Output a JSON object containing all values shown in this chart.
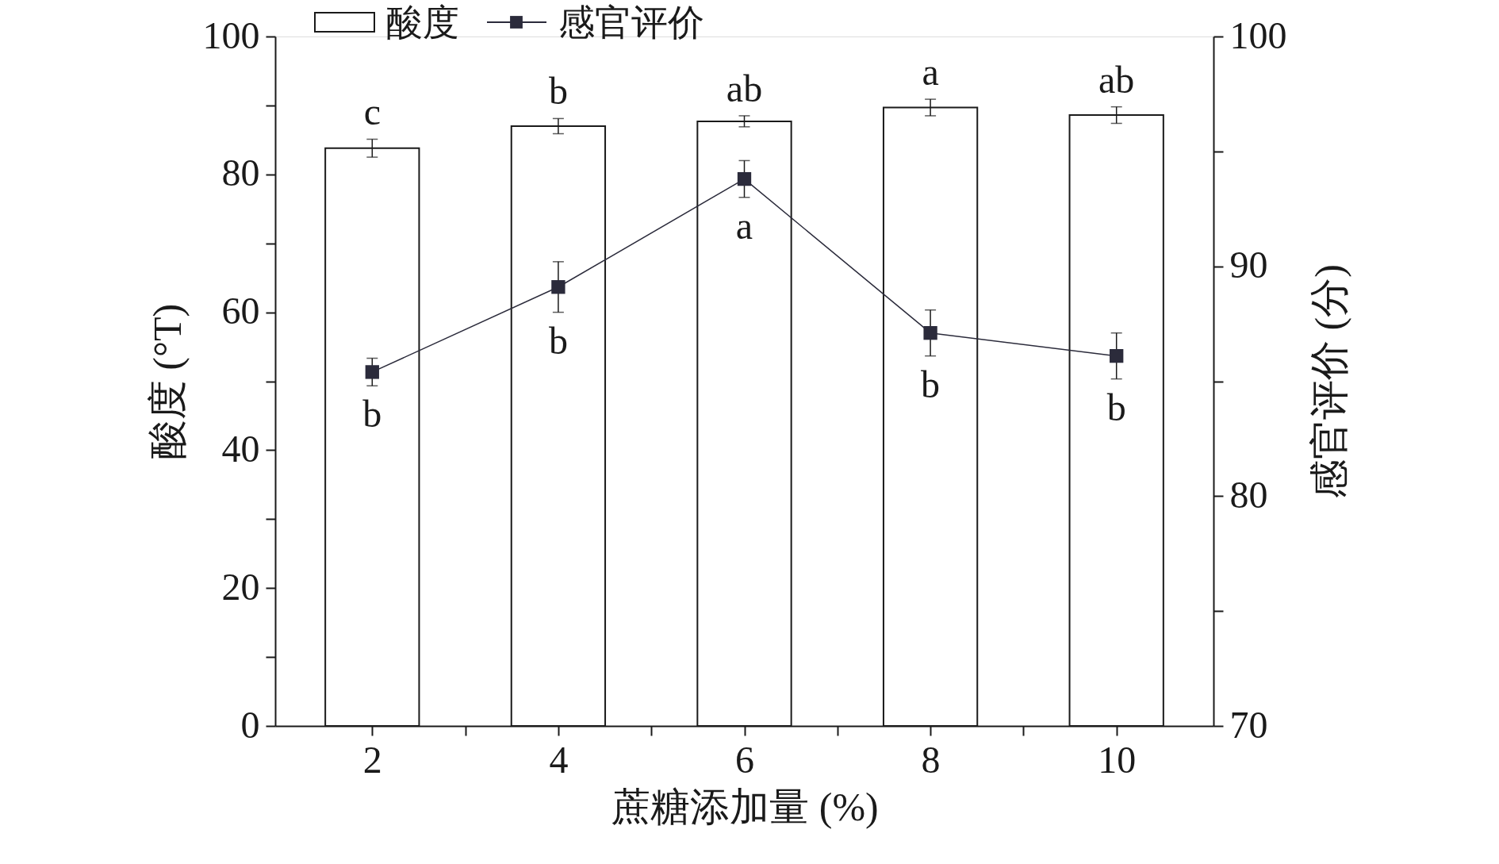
{
  "chart_data": {
    "type": "bar",
    "x": [
      2,
      4,
      6,
      8,
      10
    ],
    "xlabel": "蔗糖添加量 (%)",
    "ylabel": "酸度 (°T)",
    "y2label": "感官评价 (分)",
    "series": [
      {
        "name": "酸度",
        "color": "#ffffff",
        "values": [
          83.8,
          87.0,
          87.7,
          89.7,
          88.6
        ],
        "errors": [
          1.3,
          1.1,
          0.8,
          1.2,
          1.2
        ]
      },
      {
        "name": "感官评价",
        "type": "line",
        "axis": "y2",
        "color": "#2b2b3b",
        "values": [
          85.4,
          89.1,
          93.8,
          87.1,
          86.1
        ],
        "errors": [
          0.6,
          1.1,
          0.8,
          1.0,
          1.0
        ]
      }
    ],
    "xlim": [
      1,
      11
    ],
    "xticks": [
      2,
      {
        "value": 3,
        "label": null
      },
      4,
      {
        "value": 5,
        "label": null
      },
      6,
      {
        "value": 7,
        "label": null
      },
      8,
      {
        "value": 9,
        "label": null
      },
      10
    ],
    "ylim": [
      0,
      100
    ],
    "yticks": [
      0,
      {
        "value": 10,
        "label": null
      },
      20,
      {
        "value": 30,
        "label": null
      },
      40,
      {
        "value": 50,
        "label": null
      },
      60,
      {
        "value": 70,
        "label": null
      },
      80,
      {
        "value": 90,
        "label": null
      },
      100
    ],
    "y2lim": [
      70,
      100
    ],
    "y2ticks": [
      70,
      {
        "value": 75,
        "label": null
      },
      80,
      {
        "value": 85,
        "label": null
      },
      90,
      {
        "value": 95,
        "label": null
      },
      100
    ],
    "annotations": [
      "c",
      "b",
      "ab",
      "a",
      "ab",
      "b",
      "b",
      "a",
      "b",
      "b"
    ],
    "marker": "square",
    "grid": false,
    "legend": "top"
  }
}
